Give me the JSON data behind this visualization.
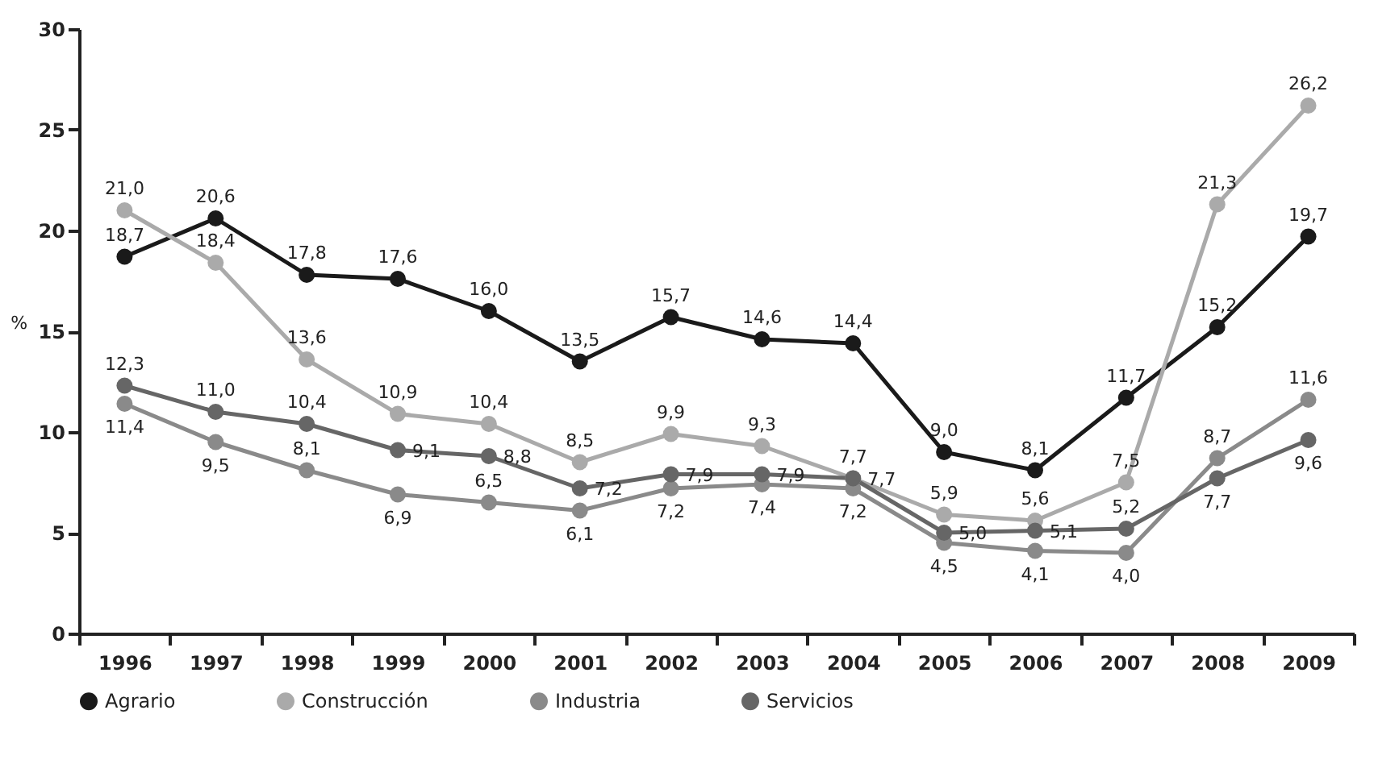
{
  "chart_data": {
    "type": "line",
    "ylabel": "%",
    "categories": [
      "1996",
      "1997",
      "1998",
      "1999",
      "2000",
      "2001",
      "2002",
      "2003",
      "2004",
      "2005",
      "2006",
      "2007",
      "2008",
      "2009"
    ],
    "series": [
      {
        "name": "Agrario",
        "color": "#1a1a1a",
        "values": [
          18.7,
          20.6,
          17.8,
          17.6,
          16.0,
          13.5,
          15.7,
          14.6,
          14.4,
          9.0,
          8.1,
          11.7,
          15.2,
          19.7
        ],
        "value_labels": [
          "18,7",
          "20,6",
          "17,8",
          "17,6",
          "16,0",
          "13,5",
          "15,7",
          "14,6",
          "14,4",
          "9,0",
          "8,1",
          "11,7",
          "15,2",
          "19,7"
        ]
      },
      {
        "name": "Construcción",
        "color": "#aaaaaa",
        "values": [
          21.0,
          18.4,
          13.6,
          10.9,
          10.4,
          8.5,
          9.9,
          9.3,
          7.7,
          5.9,
          5.6,
          7.5,
          21.3,
          26.2
        ],
        "value_labels": [
          "21,0",
          "18,4",
          "13,6",
          "10,9",
          "10,4",
          "8,5",
          "9,9",
          "9,3",
          "7,7",
          "5,9",
          "5,6",
          "7,5",
          "21,3",
          "26,2"
        ]
      },
      {
        "name": "Industria",
        "color": "#8a8a8a",
        "values": [
          11.4,
          9.5,
          8.1,
          6.9,
          6.5,
          6.1,
          7.2,
          7.4,
          7.2,
          4.5,
          4.1,
          4.0,
          8.7,
          11.6
        ],
        "value_labels": [
          "11,4",
          "9,5",
          "8,1",
          "6,9",
          "6,5",
          "6,1",
          "7,2",
          "7,4",
          "7,2",
          "4,5",
          "4,1",
          "4,0",
          "8,7",
          "11,6"
        ]
      },
      {
        "name": "Servicios",
        "color": "#666666",
        "values": [
          12.3,
          11.0,
          10.4,
          9.1,
          8.8,
          7.2,
          7.9,
          7.9,
          7.7,
          5.0,
          5.1,
          5.2,
          7.7,
          9.6
        ],
        "value_labels": [
          "12,3",
          "11,0",
          "10,4",
          "9,1",
          "8,8",
          "7,2",
          "7,9",
          "7,9",
          "7,7",
          "5,0",
          "5,1",
          "5,2",
          "7,7",
          "9,6"
        ]
      }
    ],
    "ylim": [
      0,
      30
    ],
    "yticks": [
      0,
      5,
      10,
      15,
      20,
      25,
      30
    ],
    "legend": "bottom",
    "marker": "circle",
    "line_style": "solid"
  }
}
